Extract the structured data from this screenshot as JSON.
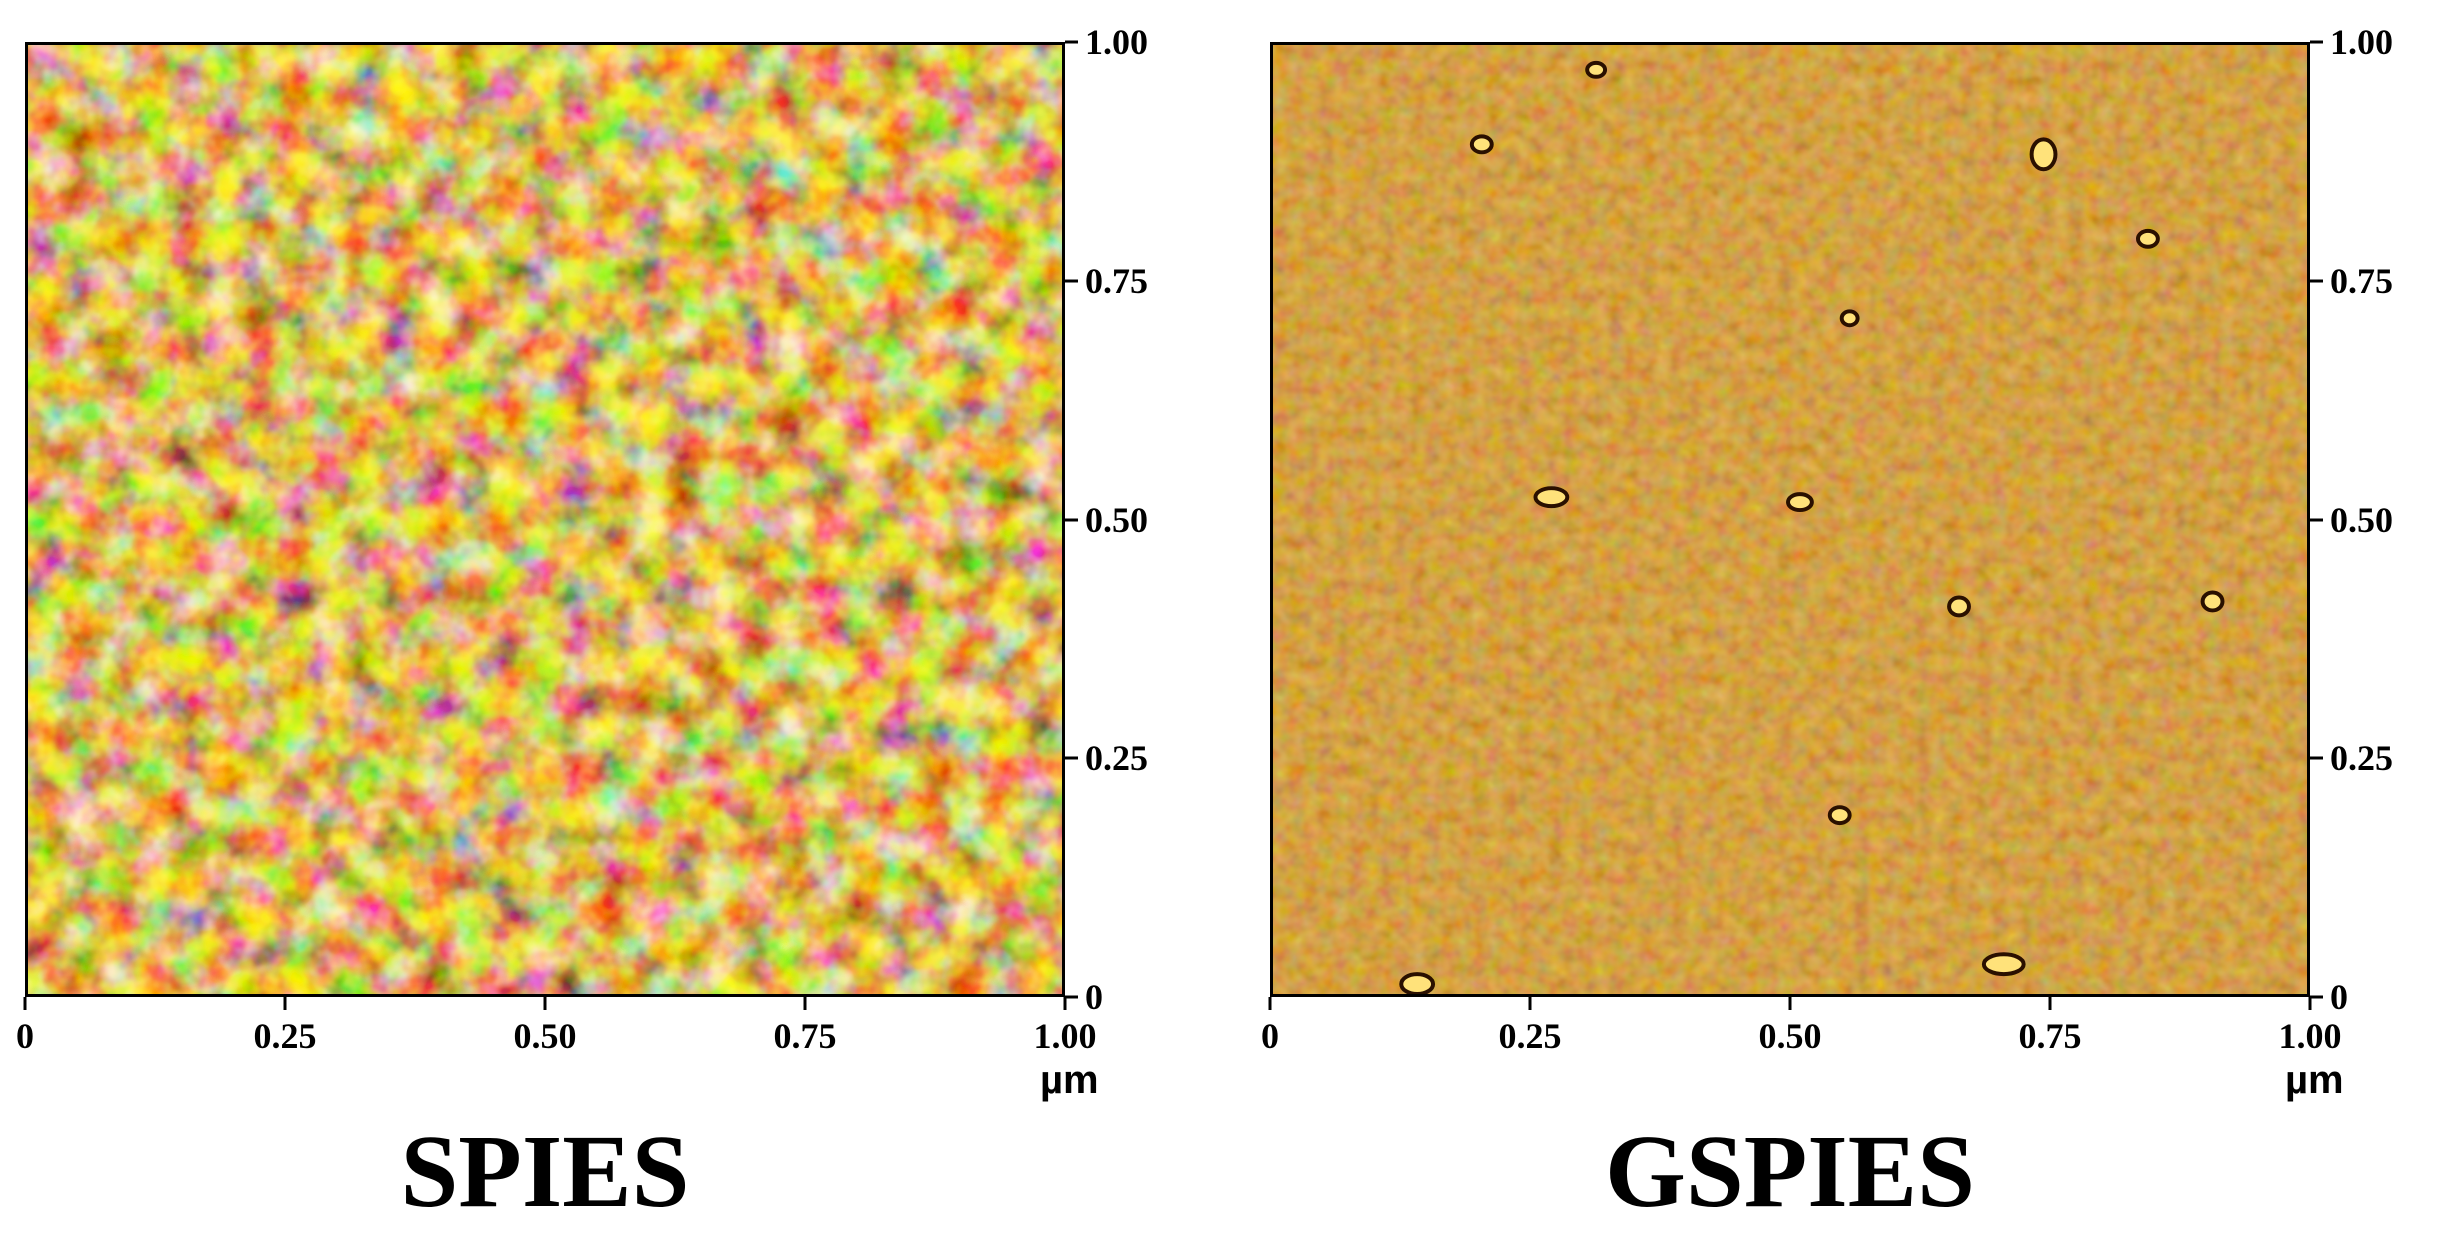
{
  "panels": [
    {
      "title": "SPIES",
      "x_ticks": [
        "0",
        "0.25",
        "0.50",
        "0.75",
        "1.00"
      ],
      "y_ticks": [
        "1.00",
        "0.75",
        "0.50",
        "0.25",
        "0"
      ],
      "unit": "µm",
      "texture": {
        "base": "#9a5a10",
        "dark": "#1c0800",
        "light": "#ffe890",
        "contrast": "high",
        "feature_scale": "coarse"
      }
    },
    {
      "title": "GSPIES",
      "x_ticks": [
        "0",
        "0.25",
        "0.50",
        "0.75",
        "1.00"
      ],
      "y_ticks": [
        "1.00",
        "0.75",
        "0.50",
        "0.25",
        "0"
      ],
      "unit": "µm",
      "texture": {
        "base": "#a85c10",
        "dark": "#5a2a00",
        "light": "#e0a040",
        "contrast": "low",
        "feature_scale": "fine"
      }
    }
  ]
}
